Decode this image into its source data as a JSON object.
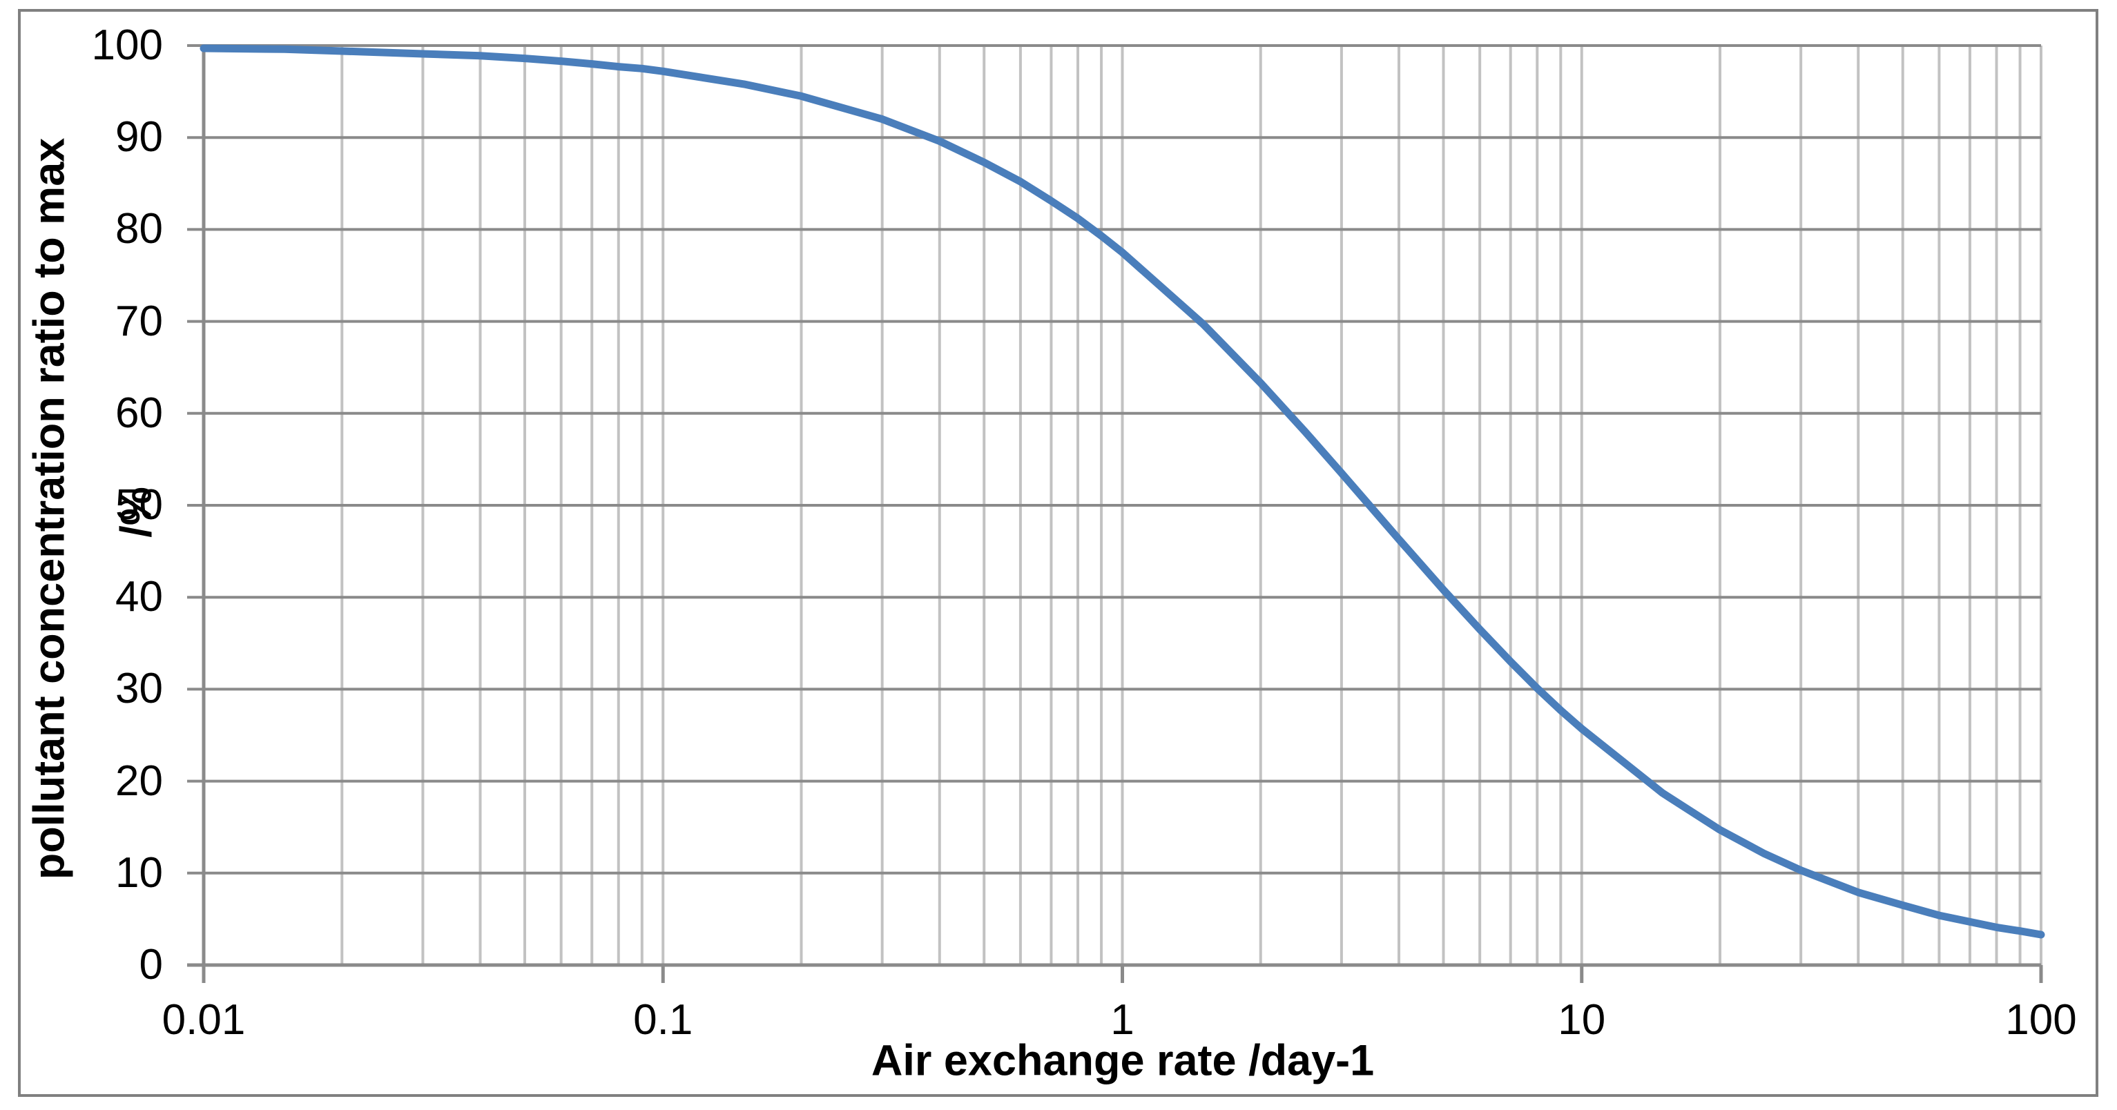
{
  "chart_data": {
    "type": "line",
    "title": "",
    "xlabel": "Air exchange rate /day-1",
    "ylabel": "pollutant concentration ratio to max",
    "ylabel_unit": "/%",
    "x_scale": "log",
    "xlim": [
      0.01,
      100
    ],
    "ylim": [
      0,
      100
    ],
    "grid": "on",
    "legend": "none",
    "x_ticks": [
      {
        "value": 0.01,
        "label": "0.01"
      },
      {
        "value": 0.1,
        "label": "0.1"
      },
      {
        "value": 1,
        "label": "1"
      },
      {
        "value": 10,
        "label": "10"
      },
      {
        "value": 100,
        "label": "100"
      }
    ],
    "y_ticks": [
      {
        "value": 0,
        "label": "0"
      },
      {
        "value": 10,
        "label": "10"
      },
      {
        "value": 20,
        "label": "20"
      },
      {
        "value": 30,
        "label": "30"
      },
      {
        "value": 40,
        "label": "40"
      },
      {
        "value": 50,
        "label": "50"
      },
      {
        "value": 60,
        "label": "60"
      },
      {
        "value": 70,
        "label": "70"
      },
      {
        "value": 80,
        "label": "80"
      },
      {
        "value": 90,
        "label": "90"
      },
      {
        "value": 100,
        "label": "100"
      }
    ],
    "x": [
      0.01,
      0.015,
      0.02,
      0.03,
      0.04,
      0.05,
      0.06,
      0.07,
      0.08,
      0.09,
      0.1,
      0.15,
      0.2,
      0.3,
      0.4,
      0.5,
      0.6,
      0.7,
      0.8,
      0.9,
      1,
      1.5,
      2,
      2.5,
      3,
      4,
      5,
      6,
      7,
      8,
      9,
      10,
      15,
      20,
      25,
      30,
      40,
      50,
      60,
      70,
      80,
      90,
      100
    ],
    "series": [
      {
        "name": "pollutant concentration ratio to max /%",
        "color": "#4A7EBB",
        "values": [
          99.7,
          99.6,
          99.4,
          99.1,
          98.9,
          98.6,
          98.3,
          98.0,
          97.7,
          97.5,
          97.2,
          95.8,
          94.5,
          92.0,
          89.6,
          87.3,
          85.2,
          83.1,
          81.2,
          79.3,
          77.5,
          69.7,
          63.3,
          58.0,
          53.5,
          46.3,
          40.8,
          36.5,
          33.0,
          30.1,
          27.7,
          25.7,
          18.7,
          14.7,
          12.1,
          10.3,
          7.9,
          6.5,
          5.4,
          4.7,
          4.1,
          3.7,
          3.3
        ]
      }
    ]
  },
  "colors": {
    "background": "#FFFFFF",
    "frame": "#808080",
    "axis": "#8A8A8A",
    "grid_major": "#8A8A8A",
    "grid_minor": "#C2C2C2",
    "curve": "#4A7EBB",
    "text": "#000000"
  }
}
